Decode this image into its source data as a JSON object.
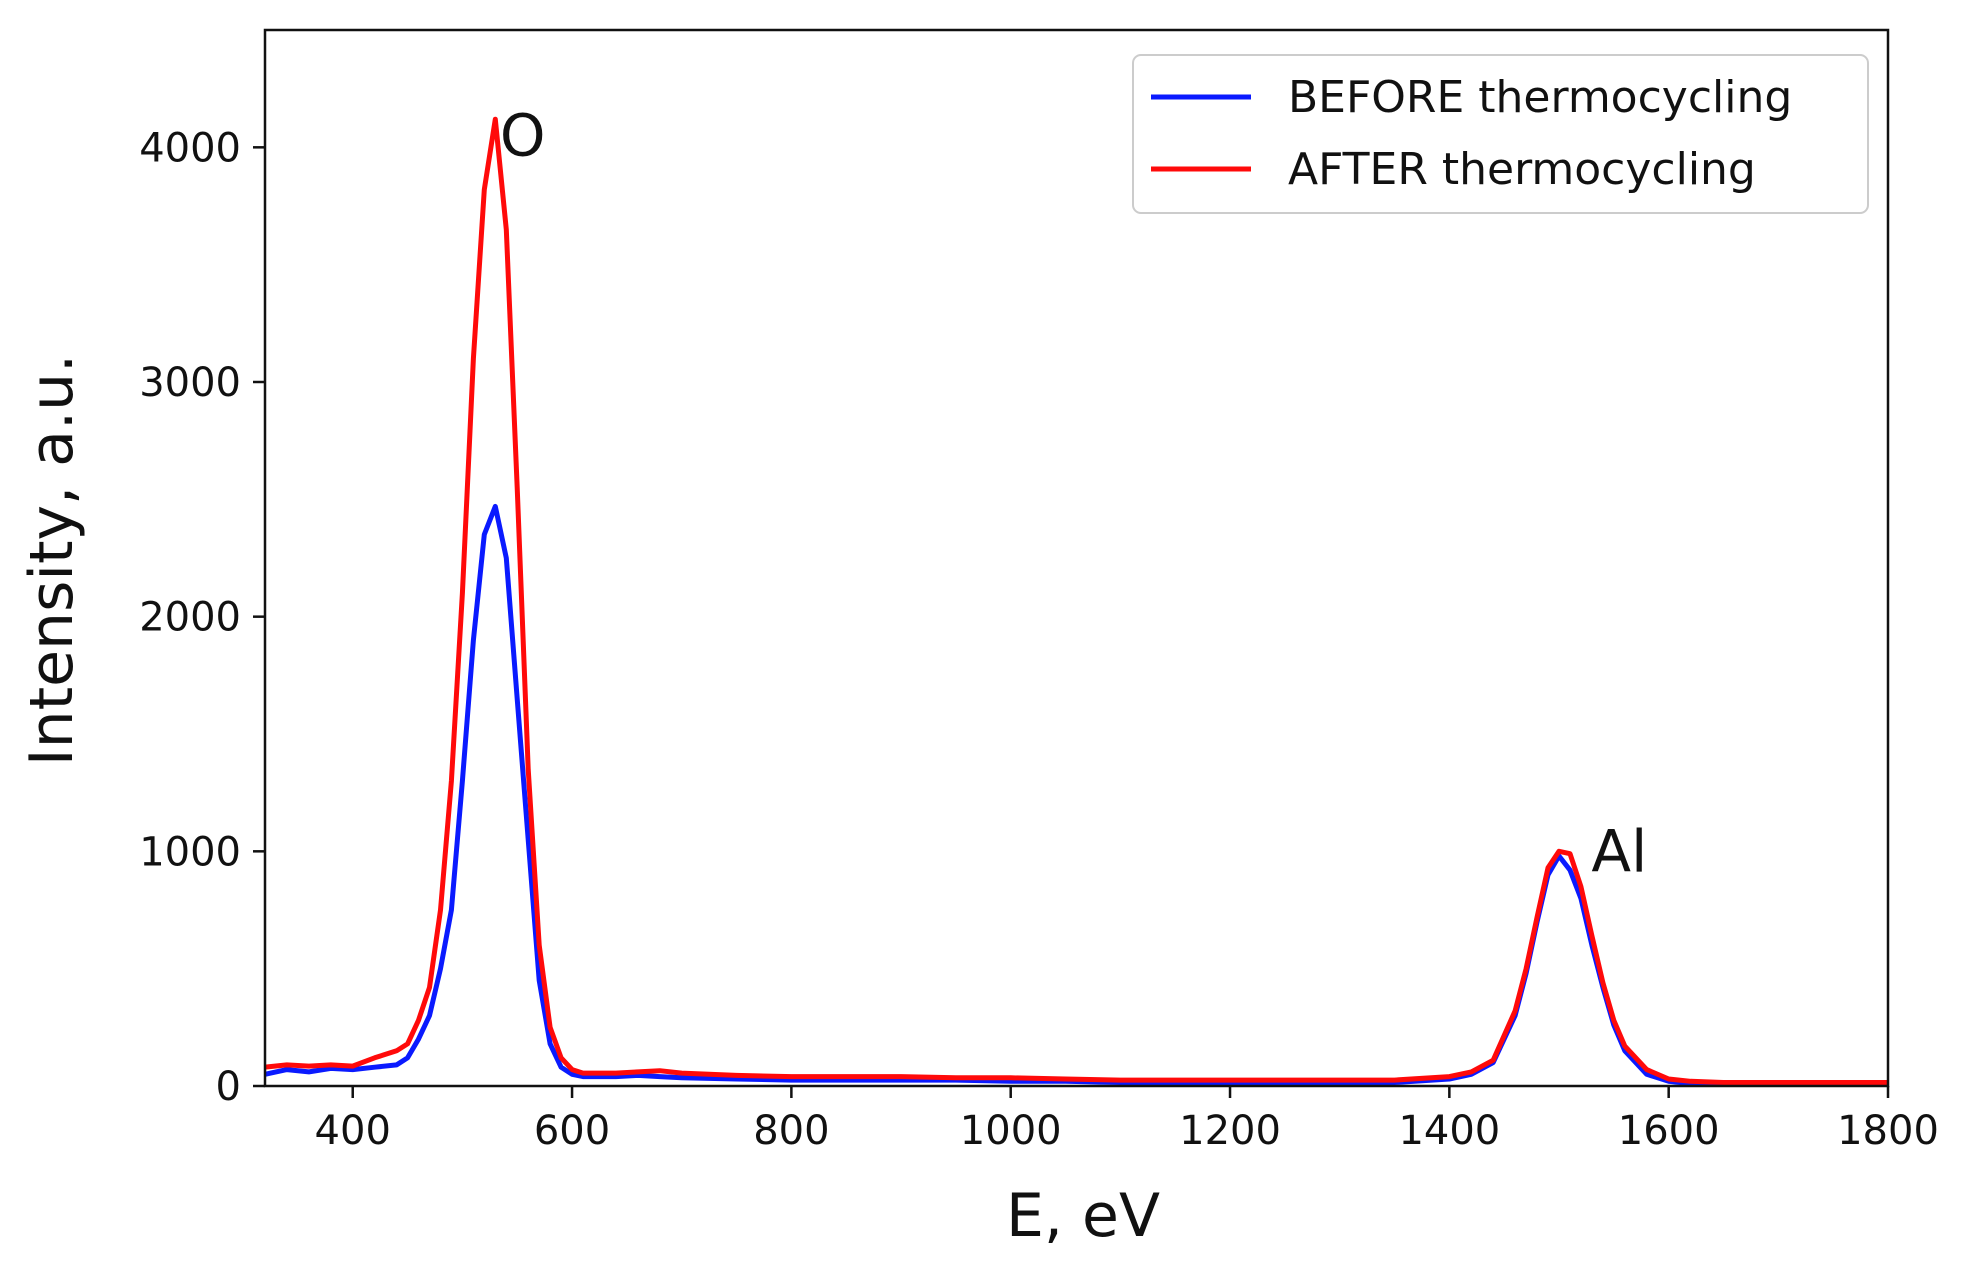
{
  "chart_data": {
    "type": "line",
    "title": "",
    "xlabel": "E, eV",
    "ylabel": "Intensity, a.u.",
    "xlim": [
      320,
      1800
    ],
    "ylim": [
      0,
      4500
    ],
    "xticks": [
      400,
      600,
      800,
      1000,
      1200,
      1400,
      1600,
      1800
    ],
    "yticks": [
      0,
      1000,
      2000,
      3000,
      4000
    ],
    "grid": false,
    "legend_position": "top-right",
    "annotations": [
      {
        "text": "O",
        "x": 555,
        "y": 4050
      },
      {
        "text": "Al",
        "x": 1555,
        "y": 1000
      }
    ],
    "series": [
      {
        "name": "BEFORE thermocycling",
        "color": "#0a1aff",
        "x": [
          320,
          340,
          360,
          380,
          400,
          420,
          440,
          450,
          460,
          470,
          480,
          490,
          500,
          510,
          520,
          530,
          540,
          550,
          560,
          570,
          580,
          590,
          600,
          610,
          620,
          640,
          660,
          680,
          700,
          750,
          800,
          850,
          900,
          950,
          1000,
          1050,
          1100,
          1150,
          1200,
          1250,
          1300,
          1350,
          1400,
          1420,
          1440,
          1460,
          1470,
          1480,
          1490,
          1500,
          1510,
          1520,
          1530,
          1540,
          1550,
          1560,
          1580,
          1600,
          1620,
          1650,
          1700,
          1750,
          1800
        ],
        "y": [
          50,
          70,
          60,
          75,
          70,
          80,
          90,
          120,
          200,
          300,
          500,
          750,
          1300,
          1900,
          2350,
          2470,
          2250,
          1650,
          1050,
          450,
          180,
          80,
          50,
          40,
          40,
          40,
          45,
          40,
          35,
          30,
          25,
          25,
          25,
          25,
          20,
          20,
          15,
          15,
          15,
          15,
          15,
          15,
          30,
          50,
          100,
          300,
          480,
          700,
          900,
          980,
          920,
          800,
          600,
          420,
          260,
          150,
          50,
          20,
          10,
          5,
          5,
          5,
          5
        ]
      },
      {
        "name": "AFTER thermocycling",
        "color": "#ff0a0a",
        "x": [
          320,
          340,
          360,
          380,
          400,
          420,
          440,
          450,
          460,
          470,
          480,
          490,
          500,
          510,
          520,
          530,
          540,
          550,
          560,
          570,
          580,
          590,
          600,
          610,
          620,
          640,
          660,
          680,
          700,
          750,
          800,
          850,
          900,
          950,
          1000,
          1050,
          1100,
          1150,
          1200,
          1250,
          1300,
          1350,
          1400,
          1420,
          1440,
          1460,
          1470,
          1480,
          1490,
          1500,
          1510,
          1520,
          1530,
          1540,
          1550,
          1560,
          1580,
          1600,
          1620,
          1650,
          1700,
          1750,
          1800
        ],
        "y": [
          80,
          90,
          85,
          90,
          85,
          120,
          150,
          180,
          280,
          420,
          750,
          1300,
          2100,
          3100,
          3820,
          4120,
          3650,
          2550,
          1350,
          600,
          250,
          120,
          70,
          55,
          55,
          55,
          60,
          65,
          55,
          45,
          40,
          40,
          40,
          35,
          35,
          30,
          25,
          25,
          25,
          25,
          25,
          25,
          40,
          60,
          110,
          320,
          500,
          720,
          930,
          1000,
          990,
          850,
          640,
          440,
          280,
          170,
          70,
          30,
          20,
          15,
          15,
          15,
          15
        ]
      }
    ]
  }
}
